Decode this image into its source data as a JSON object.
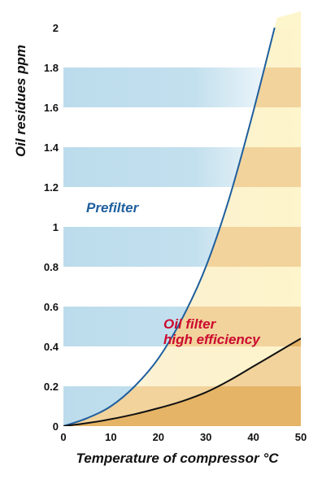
{
  "chart_data": {
    "type": "line",
    "title": "",
    "xlabel": "Temperature of compressor °C",
    "ylabel": "Oil residues ppm",
    "xlim": [
      0,
      50
    ],
    "ylim": [
      0,
      2.0
    ],
    "x_ticks": [
      "0",
      "10",
      "20",
      "30",
      "40",
      "50"
    ],
    "y_ticks": [
      "0",
      "0.2",
      "0.4",
      "0.6",
      "0.8",
      "1",
      "1.2",
      "1.4",
      "1.6",
      "1.8",
      "2"
    ],
    "grid": false,
    "series": [
      {
        "name": "Prefilter",
        "color": "#1f5f9e",
        "x": [
          0,
          5,
          10,
          15,
          20,
          25,
          30,
          35,
          40,
          45
        ],
        "y": [
          0,
          0.04,
          0.1,
          0.2,
          0.34,
          0.54,
          0.8,
          1.15,
          1.58,
          2.05
        ]
      },
      {
        "name": "Oil filter high efficiency",
        "label_lines": [
          "Oil filter",
          "high efficiency"
        ],
        "color": "#111111",
        "x": [
          0,
          5,
          10,
          15,
          20,
          25,
          30,
          35,
          40,
          45,
          50
        ],
        "y": [
          0,
          0.015,
          0.035,
          0.06,
          0.09,
          0.125,
          0.17,
          0.23,
          0.3,
          0.37,
          0.44
        ]
      }
    ],
    "colors": {
      "blue_band": "#bcdcec",
      "light_band": "#fdf5cc",
      "tan_band": "#f2d39c",
      "tan_bottom": "#e5b466",
      "prefilter_label": "#1f5f9e",
      "oilfilter_label": "#cc0a2f"
    }
  }
}
